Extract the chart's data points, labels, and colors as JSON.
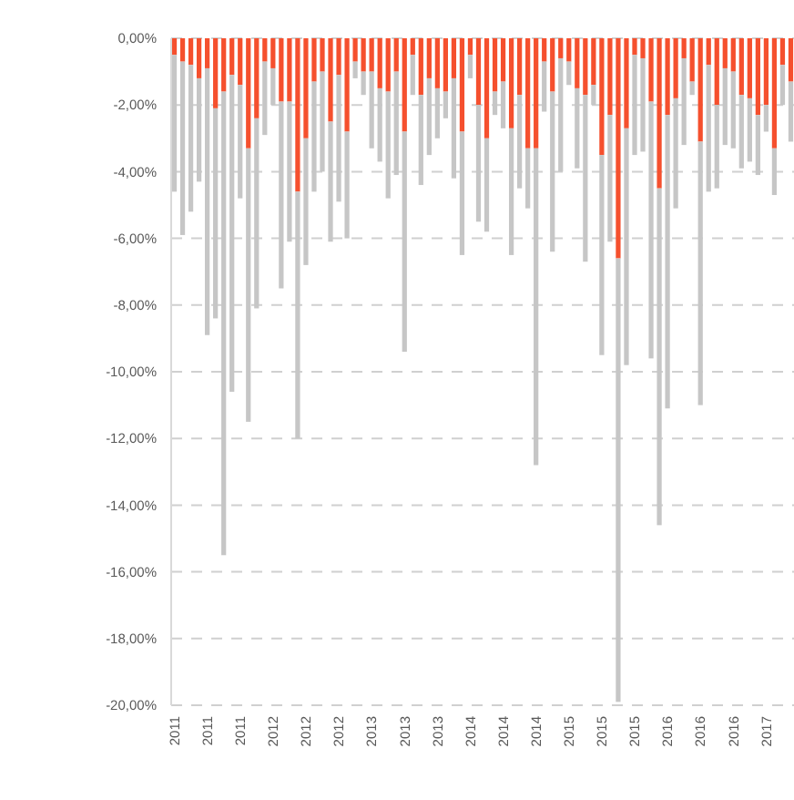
{
  "chart_data": {
    "type": "bar",
    "stacked": true,
    "categories": [
      "2011",
      null,
      null,
      null,
      "2011",
      null,
      null,
      null,
      "2011",
      null,
      null,
      null,
      "2012",
      null,
      null,
      null,
      "2012",
      null,
      null,
      null,
      "2012",
      null,
      null,
      null,
      "2013",
      null,
      null,
      null,
      "2013",
      null,
      null,
      null,
      "2013",
      null,
      null,
      null,
      "2014",
      null,
      null,
      null,
      "2014",
      null,
      null,
      null,
      "2014",
      null,
      null,
      null,
      "2015",
      null,
      null,
      null,
      "2015",
      null,
      null,
      null,
      "2015",
      null,
      null,
      null,
      "2016",
      null,
      null,
      null,
      "2016",
      null,
      null,
      null,
      "2016",
      null,
      null,
      null,
      "2017",
      null,
      null,
      null
    ],
    "series": [
      {
        "color": "#f5502e",
        "values": [
          -0.5,
          -0.7,
          -0.8,
          -1.2,
          -0.9,
          -2.1,
          -1.6,
          -1.1,
          -1.4,
          -3.3,
          -2.4,
          -0.7,
          -0.9,
          -1.9,
          -1.9,
          -4.6,
          -3.0,
          -1.3,
          -1.0,
          -2.5,
          -1.1,
          -2.8,
          -0.7,
          -1.0,
          -1.0,
          -1.5,
          -1.6,
          -1.0,
          -2.8,
          -0.5,
          -1.7,
          -1.2,
          -1.5,
          -1.6,
          -1.2,
          -2.8,
          -0.5,
          -2.0,
          -3.0,
          -1.6,
          -1.3,
          -2.7,
          -1.7,
          -3.3,
          -3.3,
          -0.7,
          -1.6,
          -0.6,
          -0.7,
          -1.5,
          -1.7,
          -1.4,
          -3.5,
          -2.3,
          -6.6,
          -2.7,
          -0.5,
          -0.6,
          -1.9,
          -4.5,
          -2.3,
          -1.8,
          -0.6,
          -1.3,
          -3.1,
          -0.8,
          -2.0,
          -0.9,
          -1.0,
          -1.7,
          -1.8,
          -2.3,
          -2.0,
          -3.3,
          -0.8,
          -1.3
        ]
      },
      {
        "color": "#c6c6c6",
        "values": [
          -4.1,
          -5.2,
          -4.4,
          -3.1,
          -8.0,
          -6.3,
          -13.9,
          -9.5,
          -3.4,
          -8.2,
          -5.7,
          -2.2,
          -1.1,
          -5.6,
          -4.2,
          -7.4,
          -3.8,
          -3.3,
          -3.0,
          -3.6,
          -3.8,
          -3.2,
          -0.5,
          -0.7,
          -2.3,
          -2.2,
          -3.2,
          -3.1,
          -6.6,
          -1.2,
          -2.7,
          -2.3,
          -1.5,
          -0.8,
          -3.0,
          -3.7,
          -0.7,
          -3.5,
          -2.8,
          -0.7,
          -1.4,
          -3.8,
          -2.8,
          -1.8,
          -9.5,
          -1.5,
          -4.8,
          -3.4,
          -0.7,
          -2.4,
          -5.0,
          -0.6,
          -6.0,
          -3.8,
          -13.3,
          -7.1,
          -3.0,
          -2.8,
          -7.7,
          -10.1,
          -8.8,
          -3.3,
          -2.6,
          -0.4,
          -7.9,
          -3.8,
          -2.5,
          -2.3,
          -2.3,
          -2.2,
          -1.9,
          -1.8,
          -0.8,
          -1.4,
          -1.2,
          -1.8
        ]
      }
    ],
    "ylim": [
      -20,
      0
    ],
    "yticks": [
      {
        "value": 0,
        "label": "0,00%"
      },
      {
        "value": -2,
        "label": "-2,00%"
      },
      {
        "value": -4,
        "label": "-4,00%"
      },
      {
        "value": -6,
        "label": "-6,00%"
      },
      {
        "value": -8,
        "label": "-8,00%"
      },
      {
        "value": -10,
        "label": "-10,00%"
      },
      {
        "value": -12,
        "label": "-12,00%"
      },
      {
        "value": -14,
        "label": "-14,00%"
      },
      {
        "value": -16,
        "label": "-16,00%"
      },
      {
        "value": -18,
        "label": "-18,00%"
      },
      {
        "value": -20,
        "label": "-20,00%"
      }
    ],
    "grid": "y"
  }
}
